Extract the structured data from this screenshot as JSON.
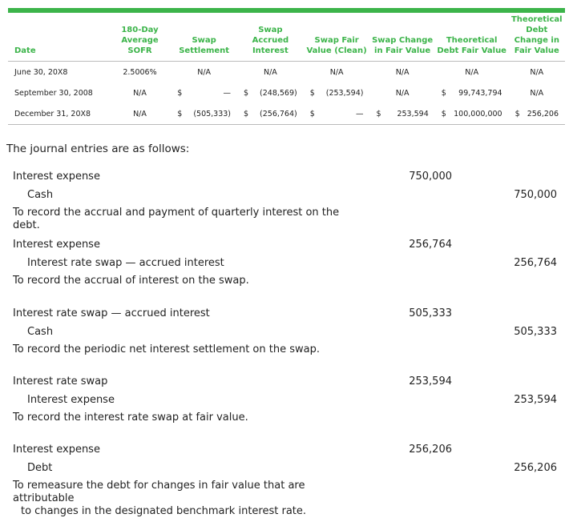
{
  "colors": {
    "accent": "#3cb44a"
  },
  "table": {
    "headers": [
      "Date",
      "180-Day Average SOFR",
      "Swap Settlement",
      "Swap Accrued Interest",
      "Swap Fair Value (Clean)",
      "Swap Change in Fair Value",
      "Theoretical Debt Fair Value",
      "Theoretical Debt Change in Fair Value"
    ],
    "rows": [
      {
        "date": "June 30, 20X8",
        "sofr": "2.5006%",
        "settle": [
          "",
          "N/A"
        ],
        "accrued": [
          "",
          "N/A"
        ],
        "fv": [
          "",
          "N/A"
        ],
        "chg": [
          "",
          "N/A"
        ],
        "debt": [
          "",
          "N/A"
        ],
        "debtchg": [
          "",
          "N/A"
        ]
      },
      {
        "date": "September 30, 2008",
        "sofr": "N/A",
        "settle": [
          "$",
          "—"
        ],
        "accrued": [
          "$",
          "(248,569)"
        ],
        "fv": [
          "$",
          "(253,594)"
        ],
        "chg": [
          "",
          "N/A"
        ],
        "debt": [
          "$",
          "99,743,794"
        ],
        "debtchg": [
          "",
          "N/A"
        ]
      },
      {
        "date": "December 31, 20X8",
        "sofr": "N/A",
        "settle": [
          "$",
          "(505,333)"
        ],
        "accrued": [
          "$",
          "(256,764)"
        ],
        "fv": [
          "$",
          "—"
        ],
        "chg": [
          "$",
          "253,594"
        ],
        "debt": [
          "$",
          "100,000,000"
        ],
        "debtchg": [
          "$",
          "256,206"
        ]
      }
    ]
  },
  "intro": "The journal entries are as follows:",
  "entries": [
    {
      "debit": "Interest expense",
      "credit": "Cash",
      "dr": "750,000",
      "cr": "750,000",
      "memo": "To record the accrual and payment of quarterly interest on the debt.",
      "memo2": ""
    },
    {
      "debit": "Interest expense",
      "credit": "Interest rate swap — accrued interest",
      "dr": "256,764",
      "cr": "256,764",
      "memo": "To record the accrual of interest on the swap.",
      "memo2": ""
    },
    {
      "debit": "Interest rate swap — accrued interest",
      "credit": "Cash",
      "dr": "505,333",
      "cr": "505,333",
      "memo": "To record the periodic net interest settlement on the swap.",
      "memo2": ""
    },
    {
      "debit": "Interest rate swap",
      "credit": "Interest expense",
      "dr": "253,594",
      "cr": "253,594",
      "memo": "To record the interest rate swap at fair value.",
      "memo2": ""
    },
    {
      "debit": "Interest expense",
      "credit": "Debt",
      "dr": "256,206",
      "cr": "256,206",
      "memo": "To remeasure the debt for changes in fair value that are attributable",
      "memo2": "to changes in the designated benchmark interest rate."
    }
  ]
}
